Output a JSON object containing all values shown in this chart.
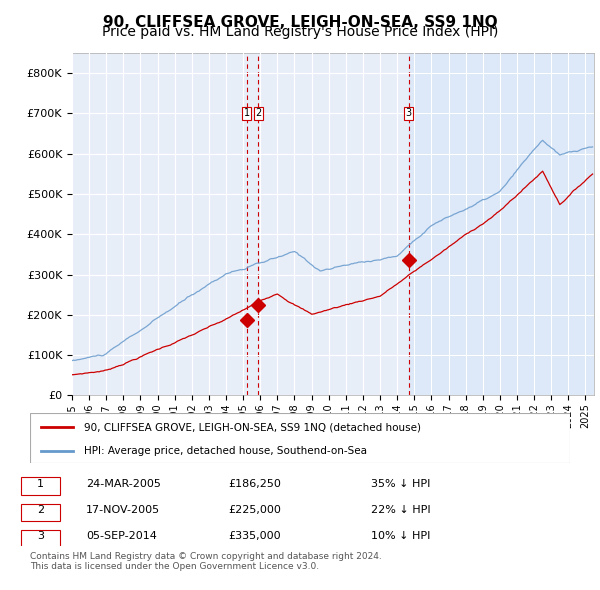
{
  "title": "90, CLIFFSEA GROVE, LEIGH-ON-SEA, SS9 1NQ",
  "subtitle": "Price paid vs. HM Land Registry's House Price Index (HPI)",
  "legend_label_red": "90, CLIFFSEA GROVE, LEIGH-ON-SEA, SS9 1NQ (detached house)",
  "legend_label_blue": "HPI: Average price, detached house, Southend-on-Sea",
  "transactions": [
    {
      "label": "1",
      "date_str": "24-MAR-2005",
      "date_num": 2005.22,
      "price": 186250,
      "pct": "35% ↓ HPI"
    },
    {
      "label": "2",
      "date_str": "17-NOV-2005",
      "date_num": 2005.88,
      "price": 225000,
      "pct": "22% ↓ HPI"
    },
    {
      "label": "3",
      "date_str": "05-SEP-2014",
      "date_num": 2014.67,
      "price": 335000,
      "pct": "10% ↓ HPI"
    }
  ],
  "footer": "Contains HM Land Registry data © Crown copyright and database right 2024.\nThis data is licensed under the Open Government Licence v3.0.",
  "ylim": [
    0,
    850000
  ],
  "xlim_start": 1995.0,
  "xlim_end": 2025.5,
  "background_color": "#ffffff",
  "plot_bg_color": "#e8eef8",
  "grid_color": "#ffffff",
  "red_color": "#cc0000",
  "blue_color": "#6699cc",
  "highlight_bg_color": "#dde8f8",
  "vline_color": "#cc0000",
  "title_fontsize": 11,
  "subtitle_fontsize": 10
}
